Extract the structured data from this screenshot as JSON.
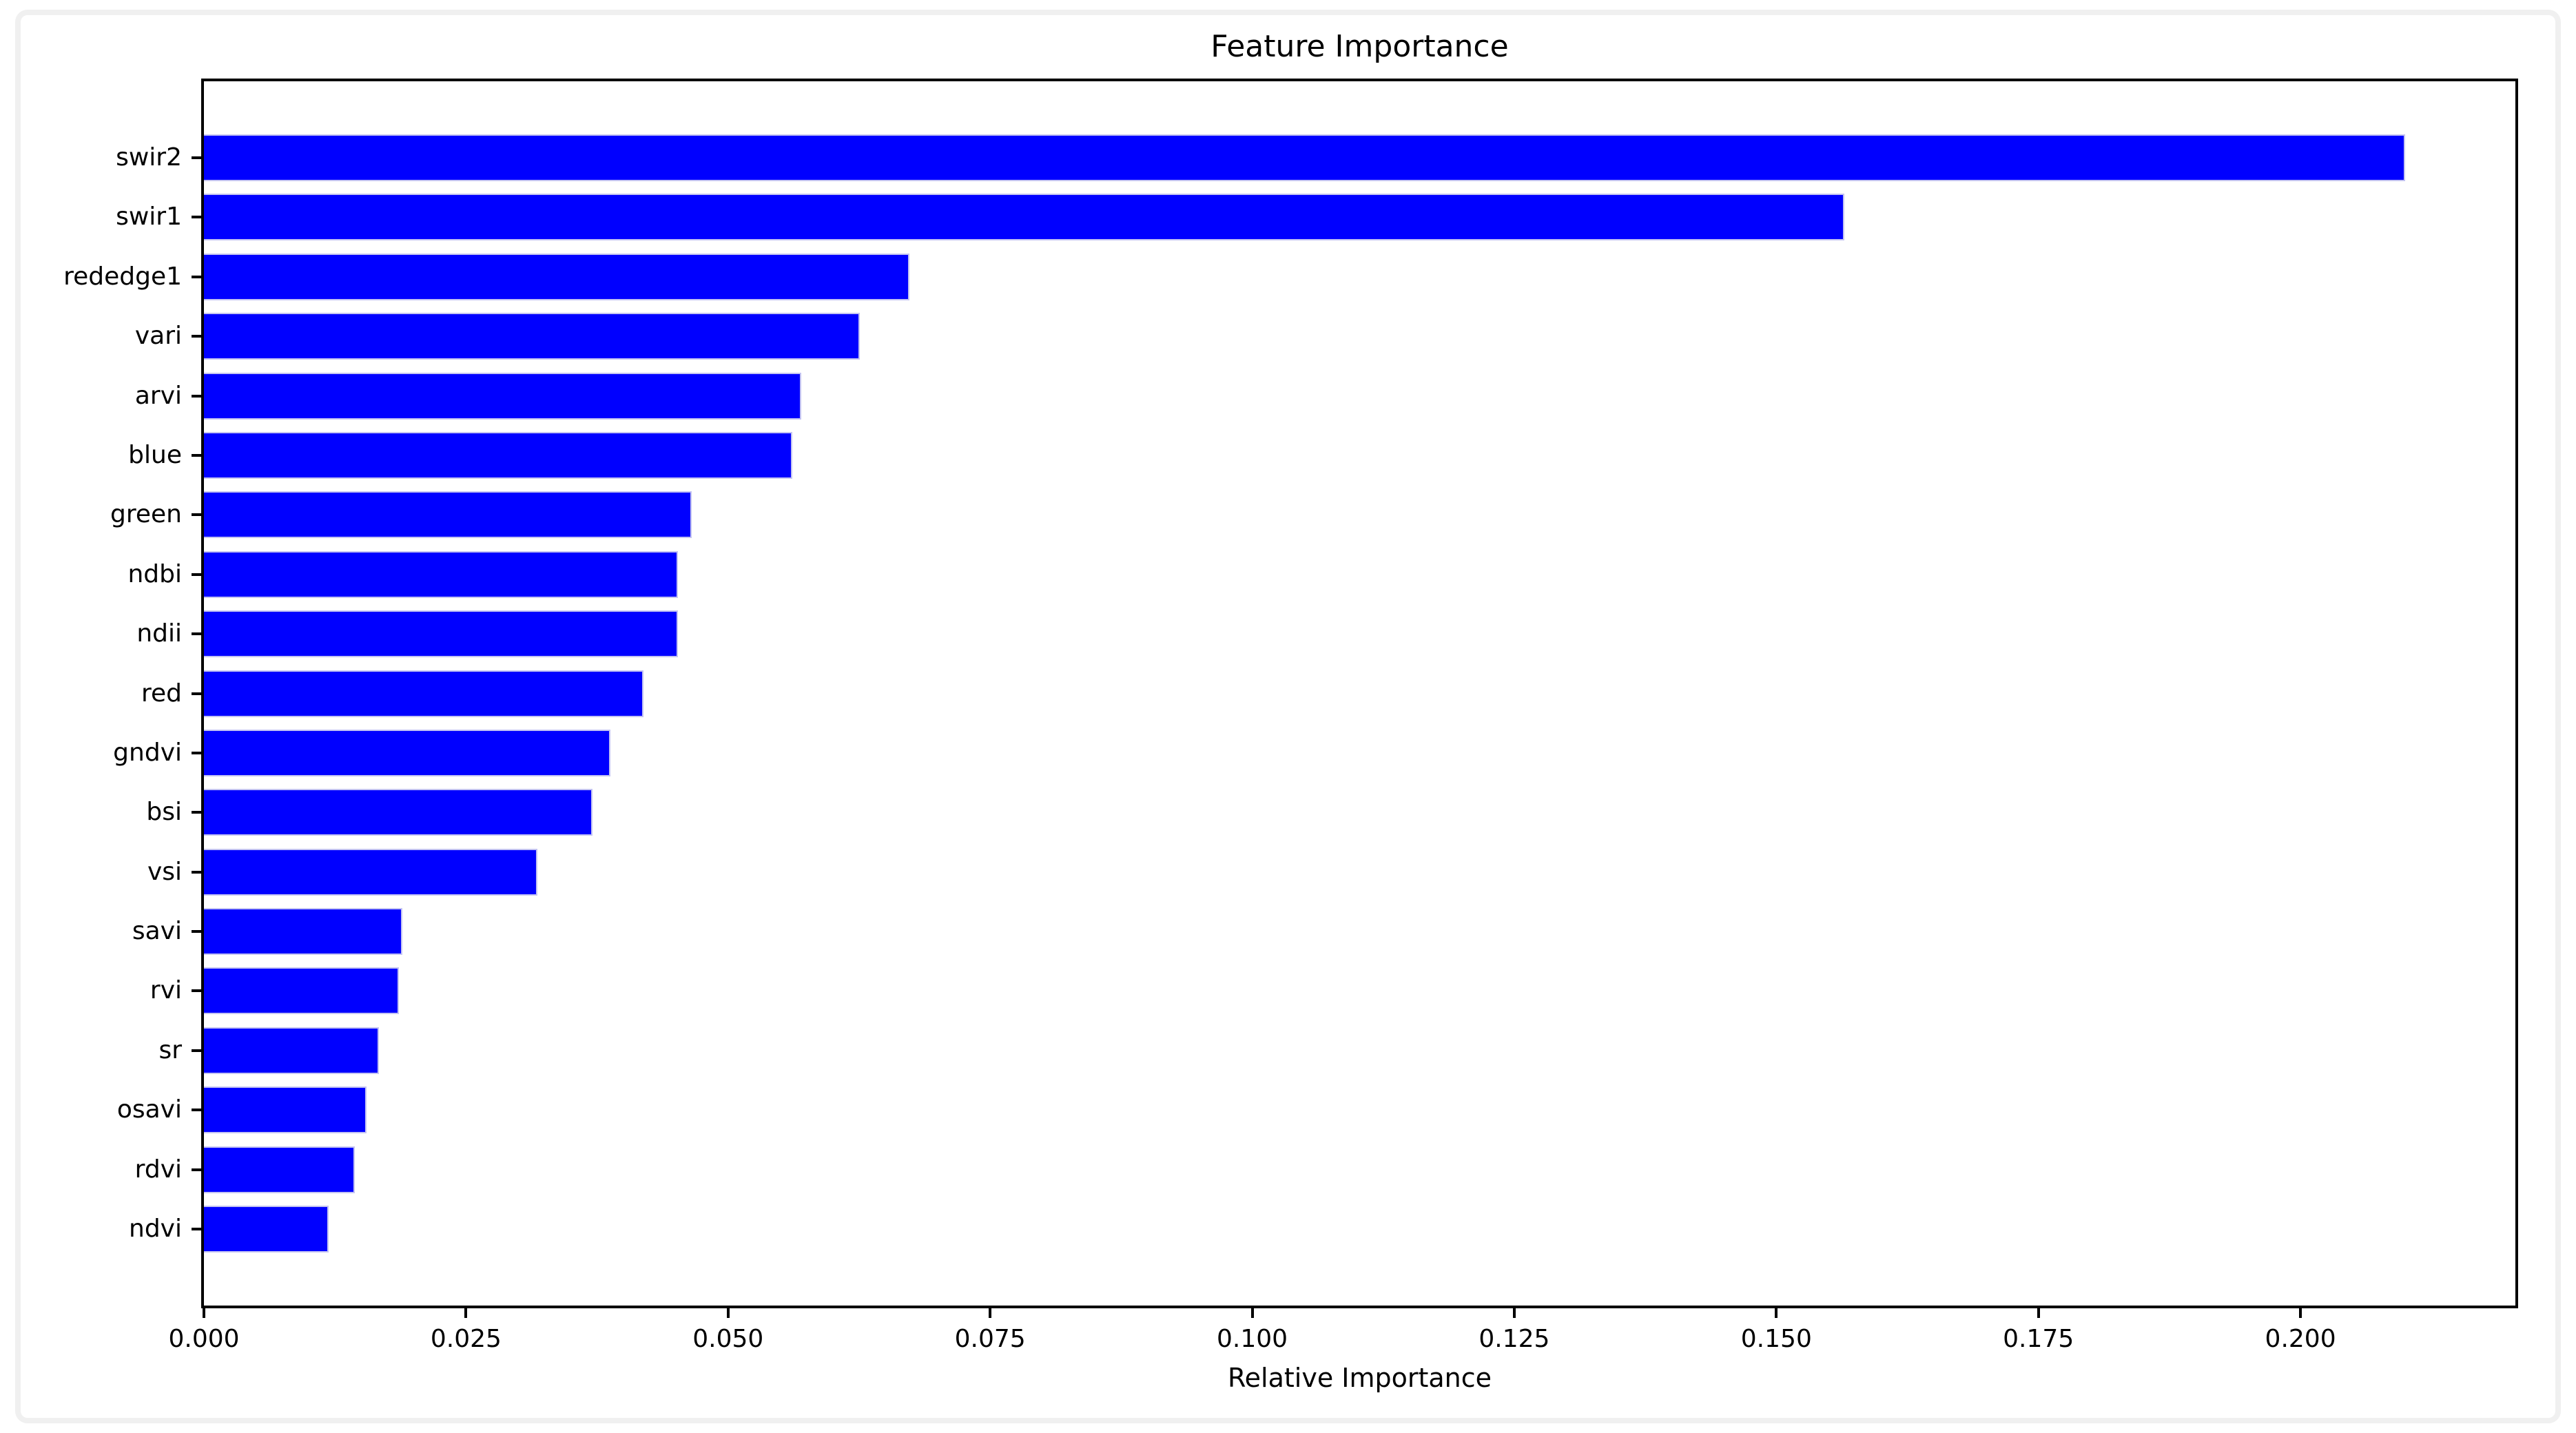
{
  "figure": {
    "title": "Feature Importance",
    "xlabel": "Relative Importance"
  },
  "chart_data": {
    "type": "bar",
    "orientation": "horizontal",
    "title": "Feature Importance",
    "xlabel": "Relative Importance",
    "ylabel": "",
    "categories": [
      "swir2",
      "swir1",
      "rededge1",
      "vari",
      "arvi",
      "blue",
      "green",
      "ndbi",
      "ndii",
      "red",
      "gndvi",
      "bsi",
      "vsi",
      "savi",
      "rvi",
      "sr",
      "osavi",
      "rdvi",
      "ndvi"
    ],
    "values": [
      0.21,
      0.1565,
      0.0673,
      0.0626,
      0.057,
      0.0561,
      0.0465,
      0.0452,
      0.0452,
      0.0419,
      0.0388,
      0.0371,
      0.0318,
      0.0189,
      0.0186,
      0.0167,
      0.0155,
      0.0144,
      0.0119
    ],
    "xlim": [
      0,
      0.2205
    ],
    "xticks": [
      0.0,
      0.025,
      0.05,
      0.075,
      0.1,
      0.125,
      0.15,
      0.175,
      0.2
    ],
    "xtick_labels": [
      "0.000",
      "0.025",
      "0.050",
      "0.075",
      "0.100",
      "0.125",
      "0.150",
      "0.175",
      "0.200"
    ],
    "grid": false,
    "legend": null,
    "colors": {
      "bar_fill": "#0000ff",
      "bar_edge": "#c3c3f2",
      "spine": "#000000",
      "frame": "#f0f0f0",
      "background": "#ffffff"
    }
  }
}
